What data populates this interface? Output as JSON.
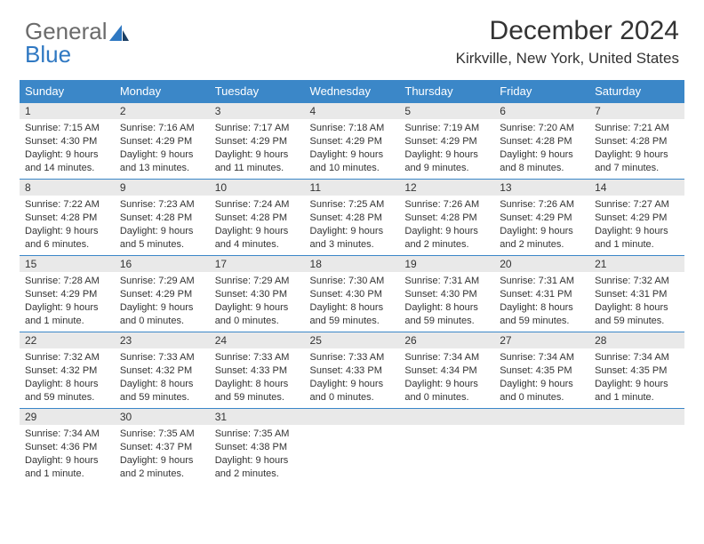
{
  "logo": {
    "text1": "General",
    "text2": "Blue"
  },
  "title": "December 2024",
  "subtitle": "Kirkville, New York, United States",
  "colors": {
    "header_bg": "#3b87c8",
    "header_fg": "#ffffff",
    "daynum_bg": "#e9e9e9",
    "border": "#3b87c8",
    "text": "#333333",
    "logo_gray": "#6b6b6b",
    "logo_blue": "#2f78c2"
  },
  "weekdays": [
    "Sunday",
    "Monday",
    "Tuesday",
    "Wednesday",
    "Thursday",
    "Friday",
    "Saturday"
  ],
  "weeks": [
    [
      {
        "n": "1",
        "sunrise": "Sunrise: 7:15 AM",
        "sunset": "Sunset: 4:30 PM",
        "day1": "Daylight: 9 hours",
        "day2": "and 14 minutes."
      },
      {
        "n": "2",
        "sunrise": "Sunrise: 7:16 AM",
        "sunset": "Sunset: 4:29 PM",
        "day1": "Daylight: 9 hours",
        "day2": "and 13 minutes."
      },
      {
        "n": "3",
        "sunrise": "Sunrise: 7:17 AM",
        "sunset": "Sunset: 4:29 PM",
        "day1": "Daylight: 9 hours",
        "day2": "and 11 minutes."
      },
      {
        "n": "4",
        "sunrise": "Sunrise: 7:18 AM",
        "sunset": "Sunset: 4:29 PM",
        "day1": "Daylight: 9 hours",
        "day2": "and 10 minutes."
      },
      {
        "n": "5",
        "sunrise": "Sunrise: 7:19 AM",
        "sunset": "Sunset: 4:29 PM",
        "day1": "Daylight: 9 hours",
        "day2": "and 9 minutes."
      },
      {
        "n": "6",
        "sunrise": "Sunrise: 7:20 AM",
        "sunset": "Sunset: 4:28 PM",
        "day1": "Daylight: 9 hours",
        "day2": "and 8 minutes."
      },
      {
        "n": "7",
        "sunrise": "Sunrise: 7:21 AM",
        "sunset": "Sunset: 4:28 PM",
        "day1": "Daylight: 9 hours",
        "day2": "and 7 minutes."
      }
    ],
    [
      {
        "n": "8",
        "sunrise": "Sunrise: 7:22 AM",
        "sunset": "Sunset: 4:28 PM",
        "day1": "Daylight: 9 hours",
        "day2": "and 6 minutes."
      },
      {
        "n": "9",
        "sunrise": "Sunrise: 7:23 AM",
        "sunset": "Sunset: 4:28 PM",
        "day1": "Daylight: 9 hours",
        "day2": "and 5 minutes."
      },
      {
        "n": "10",
        "sunrise": "Sunrise: 7:24 AM",
        "sunset": "Sunset: 4:28 PM",
        "day1": "Daylight: 9 hours",
        "day2": "and 4 minutes."
      },
      {
        "n": "11",
        "sunrise": "Sunrise: 7:25 AM",
        "sunset": "Sunset: 4:28 PM",
        "day1": "Daylight: 9 hours",
        "day2": "and 3 minutes."
      },
      {
        "n": "12",
        "sunrise": "Sunrise: 7:26 AM",
        "sunset": "Sunset: 4:28 PM",
        "day1": "Daylight: 9 hours",
        "day2": "and 2 minutes."
      },
      {
        "n": "13",
        "sunrise": "Sunrise: 7:26 AM",
        "sunset": "Sunset: 4:29 PM",
        "day1": "Daylight: 9 hours",
        "day2": "and 2 minutes."
      },
      {
        "n": "14",
        "sunrise": "Sunrise: 7:27 AM",
        "sunset": "Sunset: 4:29 PM",
        "day1": "Daylight: 9 hours",
        "day2": "and 1 minute."
      }
    ],
    [
      {
        "n": "15",
        "sunrise": "Sunrise: 7:28 AM",
        "sunset": "Sunset: 4:29 PM",
        "day1": "Daylight: 9 hours",
        "day2": "and 1 minute."
      },
      {
        "n": "16",
        "sunrise": "Sunrise: 7:29 AM",
        "sunset": "Sunset: 4:29 PM",
        "day1": "Daylight: 9 hours",
        "day2": "and 0 minutes."
      },
      {
        "n": "17",
        "sunrise": "Sunrise: 7:29 AM",
        "sunset": "Sunset: 4:30 PM",
        "day1": "Daylight: 9 hours",
        "day2": "and 0 minutes."
      },
      {
        "n": "18",
        "sunrise": "Sunrise: 7:30 AM",
        "sunset": "Sunset: 4:30 PM",
        "day1": "Daylight: 8 hours",
        "day2": "and 59 minutes."
      },
      {
        "n": "19",
        "sunrise": "Sunrise: 7:31 AM",
        "sunset": "Sunset: 4:30 PM",
        "day1": "Daylight: 8 hours",
        "day2": "and 59 minutes."
      },
      {
        "n": "20",
        "sunrise": "Sunrise: 7:31 AM",
        "sunset": "Sunset: 4:31 PM",
        "day1": "Daylight: 8 hours",
        "day2": "and 59 minutes."
      },
      {
        "n": "21",
        "sunrise": "Sunrise: 7:32 AM",
        "sunset": "Sunset: 4:31 PM",
        "day1": "Daylight: 8 hours",
        "day2": "and 59 minutes."
      }
    ],
    [
      {
        "n": "22",
        "sunrise": "Sunrise: 7:32 AM",
        "sunset": "Sunset: 4:32 PM",
        "day1": "Daylight: 8 hours",
        "day2": "and 59 minutes."
      },
      {
        "n": "23",
        "sunrise": "Sunrise: 7:33 AM",
        "sunset": "Sunset: 4:32 PM",
        "day1": "Daylight: 8 hours",
        "day2": "and 59 minutes."
      },
      {
        "n": "24",
        "sunrise": "Sunrise: 7:33 AM",
        "sunset": "Sunset: 4:33 PM",
        "day1": "Daylight: 8 hours",
        "day2": "and 59 minutes."
      },
      {
        "n": "25",
        "sunrise": "Sunrise: 7:33 AM",
        "sunset": "Sunset: 4:33 PM",
        "day1": "Daylight: 9 hours",
        "day2": "and 0 minutes."
      },
      {
        "n": "26",
        "sunrise": "Sunrise: 7:34 AM",
        "sunset": "Sunset: 4:34 PM",
        "day1": "Daylight: 9 hours",
        "day2": "and 0 minutes."
      },
      {
        "n": "27",
        "sunrise": "Sunrise: 7:34 AM",
        "sunset": "Sunset: 4:35 PM",
        "day1": "Daylight: 9 hours",
        "day2": "and 0 minutes."
      },
      {
        "n": "28",
        "sunrise": "Sunrise: 7:34 AM",
        "sunset": "Sunset: 4:35 PM",
        "day1": "Daylight: 9 hours",
        "day2": "and 1 minute."
      }
    ],
    [
      {
        "n": "29",
        "sunrise": "Sunrise: 7:34 AM",
        "sunset": "Sunset: 4:36 PM",
        "day1": "Daylight: 9 hours",
        "day2": "and 1 minute."
      },
      {
        "n": "30",
        "sunrise": "Sunrise: 7:35 AM",
        "sunset": "Sunset: 4:37 PM",
        "day1": "Daylight: 9 hours",
        "day2": "and 2 minutes."
      },
      {
        "n": "31",
        "sunrise": "Sunrise: 7:35 AM",
        "sunset": "Sunset: 4:38 PM",
        "day1": "Daylight: 9 hours",
        "day2": "and 2 minutes."
      },
      {
        "empty": true
      },
      {
        "empty": true
      },
      {
        "empty": true
      },
      {
        "empty": true
      }
    ]
  ]
}
